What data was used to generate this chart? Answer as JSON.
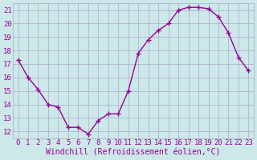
{
  "x": [
    0,
    1,
    2,
    3,
    4,
    5,
    6,
    7,
    8,
    9,
    10,
    11,
    12,
    13,
    14,
    15,
    16,
    17,
    18,
    19,
    20,
    21,
    22,
    23
  ],
  "y": [
    17.3,
    16.0,
    15.1,
    14.0,
    13.8,
    12.3,
    12.3,
    11.8,
    12.8,
    13.3,
    13.3,
    15.0,
    17.8,
    18.8,
    19.5,
    20.0,
    21.0,
    21.2,
    21.2,
    21.1,
    20.5,
    19.3,
    17.5,
    16.5
  ],
  "line_color": "#990099",
  "marker": "+",
  "bg_color": "#cce8e8",
  "grid_color": "#aaaacc",
  "xlabel": "Windchill (Refroidissement éolien,°C)",
  "xlim": [
    -0.5,
    23.5
  ],
  "ylim": [
    11.5,
    21.5
  ],
  "xticks": [
    0,
    1,
    2,
    3,
    4,
    5,
    6,
    7,
    8,
    9,
    10,
    11,
    12,
    13,
    14,
    15,
    16,
    17,
    18,
    19,
    20,
    21,
    22,
    23
  ],
  "yticks": [
    12,
    13,
    14,
    15,
    16,
    17,
    18,
    19,
    20,
    21
  ],
  "xlabel_fontsize": 7,
  "tick_fontsize": 6.5,
  "line_width": 1.0,
  "marker_size": 4,
  "marker_edge_width": 1.0
}
